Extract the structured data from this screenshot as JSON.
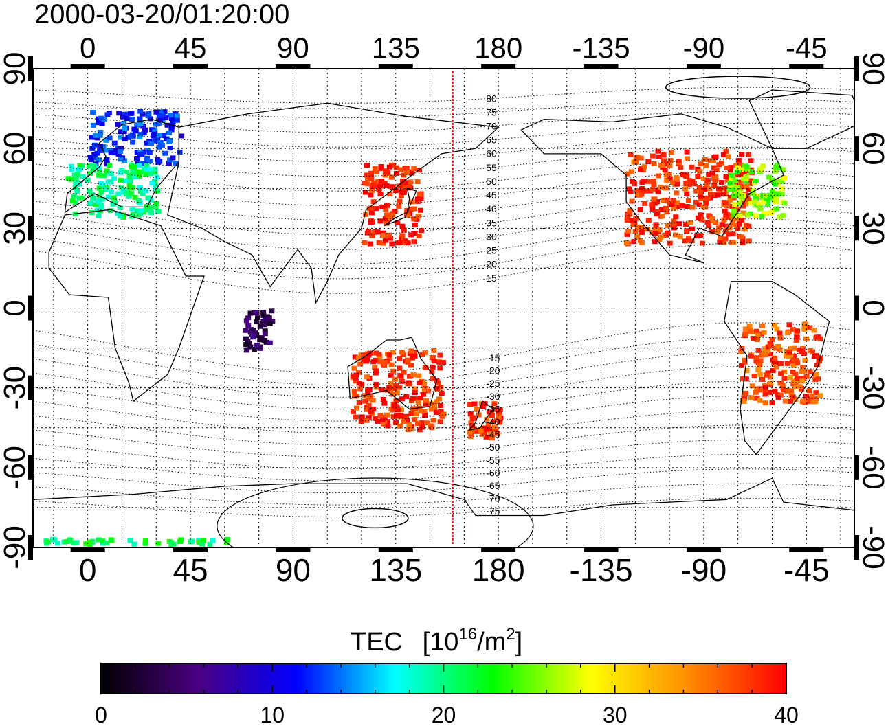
{
  "timestamp": "2000-03-20/01:20:00",
  "axes": {
    "longitude_ticks": [
      "0",
      "45",
      "90",
      "135",
      "180",
      "-135",
      "-90",
      "-45"
    ],
    "longitude_values": [
      0,
      45,
      90,
      135,
      180,
      225,
      270,
      315
    ],
    "latitude_ticks": [
      "90",
      "60",
      "30",
      "0",
      "-30",
      "-60",
      "-90"
    ],
    "latitude_values": [
      90,
      60,
      30,
      0,
      -30,
      -60,
      -90
    ],
    "lon_range": [
      -24,
      336
    ],
    "lat_range": [
      -90,
      90
    ],
    "grid": true
  },
  "terminator_longitude": 160,
  "contour_labels": [
    "80",
    "75",
    "70",
    "65",
    "60",
    "55",
    "50",
    "45",
    "40",
    "35",
    "30",
    "25",
    "20",
    "15",
    "-15",
    "-20",
    "-25",
    "-30",
    "-35",
    "-40",
    "-45",
    "-50",
    "-55",
    "-60",
    "-65",
    "-70",
    "-75"
  ],
  "contour_label_values": [
    80,
    75,
    70,
    65,
    60,
    55,
    50,
    45,
    40,
    35,
    30,
    25,
    20,
    15,
    -15,
    -20,
    -25,
    -30,
    -35,
    -40,
    -45,
    -50,
    -55,
    -60,
    -65,
    -70,
    -75
  ],
  "colorbar": {
    "title": "TEC",
    "unit": "[10",
    "unit_exp": "16",
    "unit_mid": "/m",
    "unit_exp2": "2",
    "unit_end": "]",
    "min": 0,
    "max": 40,
    "tick_labels": [
      "0",
      "10",
      "20",
      "30",
      "40"
    ],
    "tick_values": [
      0,
      10,
      20,
      30,
      40
    ],
    "stops": [
      "#000000",
      "#4b0082",
      "#0000ff",
      "#00ffff",
      "#00ff00",
      "#ffff00",
      "#ff8c00",
      "#ff0000"
    ]
  },
  "tec_regions": [
    {
      "name": "north-america",
      "lon": [
        235,
        290
      ],
      "lat": [
        25,
        60
      ],
      "value": 38
    },
    {
      "name": "north-america-ne",
      "lon": [
        280,
        305
      ],
      "lat": [
        35,
        55
      ],
      "value": 26
    },
    {
      "name": "east-asia",
      "lon": [
        120,
        145
      ],
      "lat": [
        25,
        55
      ],
      "value": 39
    },
    {
      "name": "europe-north",
      "lon": [
        0,
        40
      ],
      "lat": [
        55,
        75
      ],
      "value": 12
    },
    {
      "name": "europe-south",
      "lon": [
        -10,
        30
      ],
      "lat": [
        35,
        55
      ],
      "value": 20
    },
    {
      "name": "australia",
      "lon": [
        115,
        155
      ],
      "lat": [
        -45,
        -15
      ],
      "value": 38
    },
    {
      "name": "new-zealand",
      "lon": [
        165,
        180
      ],
      "lat": [
        -48,
        -35
      ],
      "value": 38
    },
    {
      "name": "south-america",
      "lon": [
        285,
        320
      ],
      "lat": [
        -35,
        -5
      ],
      "value": 37
    },
    {
      "name": "antarctic-strip",
      "lon": [
        -20,
        60
      ],
      "lat": [
        -88,
        -86
      ],
      "value": 21
    },
    {
      "name": "indian-ocean",
      "lon": [
        68,
        80
      ],
      "lat": [
        -15,
        0
      ],
      "value": 4
    }
  ]
}
